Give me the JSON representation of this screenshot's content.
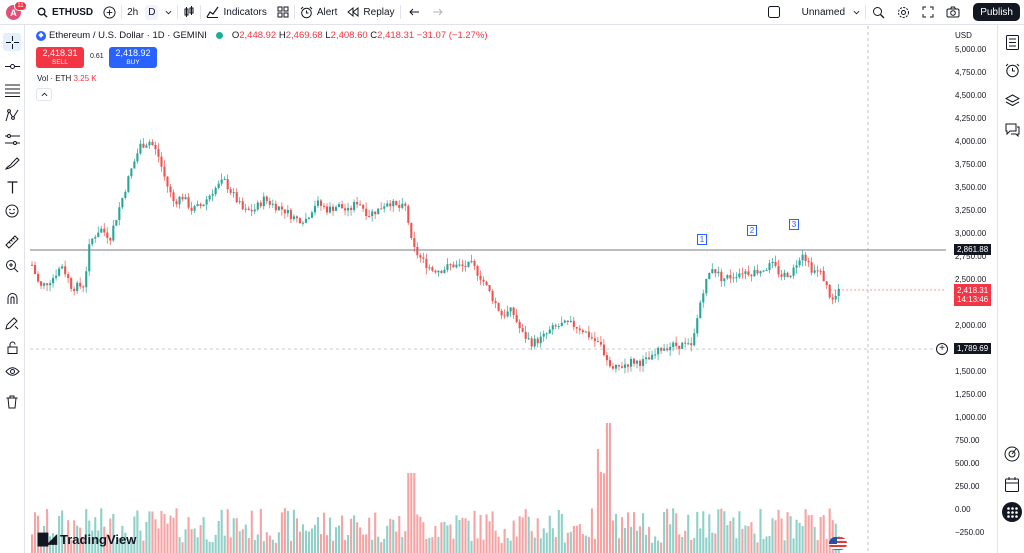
{
  "topbar": {
    "avatar_letter": "A",
    "notifications": "11",
    "symbol": "ETHUSD",
    "interval_minutes": "2h",
    "interval_day": "D",
    "indicators": "Indicators",
    "alert": "Alert",
    "replay": "Replay",
    "layout_name": "Unnamed",
    "publish": "Publish"
  },
  "legend": {
    "title": "Ethereum / U.S. Dollar · 1D · GEMINI",
    "o_label": "O",
    "o": "2,448.92",
    "h_label": "H",
    "h": "2,469.68",
    "l_label": "L",
    "l": "2,408.60",
    "c_label": "C",
    "c": "2,418.31",
    "change": "−31.07 (−1.27%)",
    "sell_price": "2,418.31",
    "sell_label": "SELL",
    "buy_price": "2,418.92",
    "buy_label": "BUY",
    "spread": "0.61",
    "vol_label": "Vol · ETH",
    "vol_value": "3.25 K"
  },
  "price_axis": {
    "currency": "USD",
    "ticks": [
      "5,000.00",
      "4,750.00",
      "4,500.00",
      "4,250.00",
      "4,000.00",
      "3,750.00",
      "3,500.00",
      "3,250.00",
      "3,000.00",
      "2,750.00",
      "2,500.00",
      "2,250.00",
      "2,000.00",
      "1,750.00",
      "1,500.00",
      "1,250.00",
      "1,000.00",
      "750.00",
      "500.00",
      "250.00",
      "0.00",
      "−250.00"
    ],
    "hline_price": "2,861.88",
    "last_price": "2,418.31",
    "countdown": "14:13:46",
    "crosshair_price": "1,789.69"
  },
  "markers": [
    "1",
    "2",
    "3"
  ],
  "brand": "TradingView",
  "colors": {
    "up": "#26a69a",
    "down": "#ef5350",
    "vol_up": "#8fd0c8",
    "vol_down": "#f5a3a3",
    "hline": "#787b86",
    "accent": "#2962ff"
  },
  "icons": [
    "search-icon",
    "add-symbol-icon",
    "bar-style-icon",
    "indicators-icon",
    "templates-icon",
    "alert-icon",
    "replay-icon",
    "undo-icon",
    "redo-icon",
    "layout-icon",
    "quick-search-icon",
    "settings-icon",
    "fullscreen-icon",
    "camera-icon",
    "crosshair-icon",
    "trendline-icon",
    "fib-icon",
    "pattern-icon",
    "forecast-icon",
    "brush-icon",
    "text-icon",
    "emoji-icon",
    "measure-icon",
    "zoom-icon",
    "magnet-icon",
    "stay-drawing-icon",
    "lock-icon",
    "eye-icon",
    "trash-icon",
    "watchlist-icon",
    "clock-icon",
    "layers-icon",
    "chat-icon",
    "target-icon",
    "calendar-icon",
    "apps-icon"
  ]
}
